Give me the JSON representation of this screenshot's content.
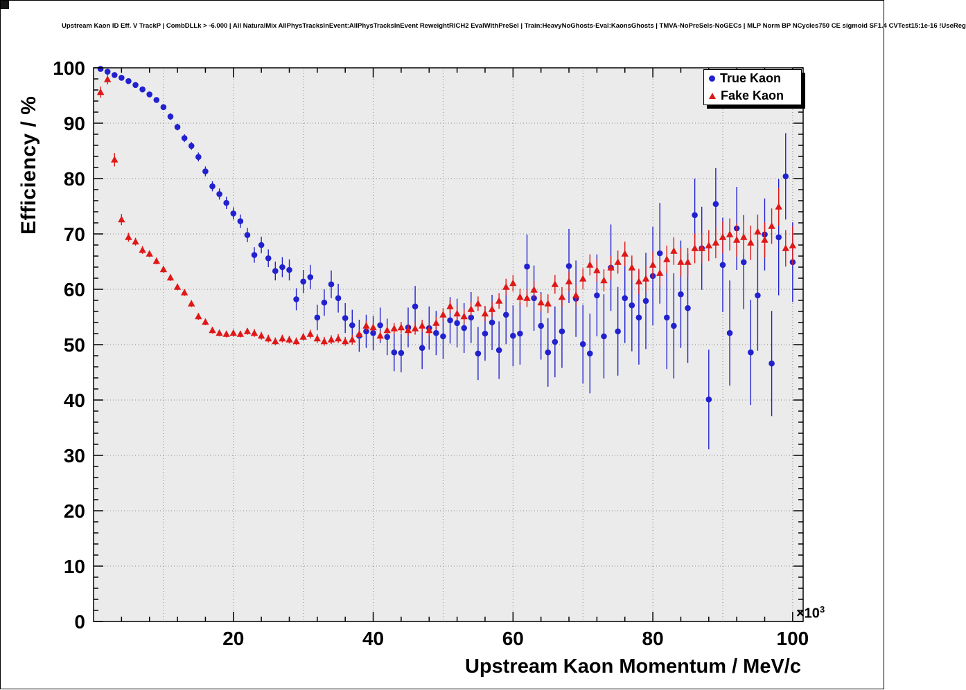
{
  "chart_data": {
    "type": "scatter",
    "title": "Upstream Kaon ID Eff. V TrackP | CombDLLk > -6.000 | All NaturalMix AllPhysTracksInEvent:AllPhysTracksInEvent ReweightRICH2 EvalWithPreSel | Train:HeavyNoGhosts-Eval:KaonsGhosts | TMVA-NoPreSels-NoGECs | MLP Norm BP NCycles750 CE sigmoid SF1.4 CVTest15:1e-16 !UseReg",
    "xlabel": "Upstream Kaon Momentum / MeV/c",
    "ylabel": "Efficiency / %",
    "x_exponent": {
      "base": "×10",
      "exp": "3"
    },
    "x_units_scale": "1e3 MeV/c",
    "xlim": [
      0,
      101.5
    ],
    "ylim": [
      0,
      100
    ],
    "x_ticks": [
      20,
      40,
      60,
      80,
      100
    ],
    "y_ticks": [
      0,
      10,
      20,
      30,
      40,
      50,
      60,
      70,
      80,
      90,
      100
    ],
    "grid": true,
    "legend_position": "top-right",
    "colors": {
      "frame_bg": "#ebebeb",
      "grid": "#8a8a8a",
      "axis": "#000000"
    },
    "x": [
      1,
      2,
      3,
      4,
      5,
      6,
      7,
      8,
      9,
      10,
      11,
      12,
      13,
      14,
      15,
      16,
      17,
      18,
      19,
      20,
      21,
      22,
      23,
      24,
      25,
      26,
      27,
      28,
      29,
      30,
      31,
      32,
      33,
      34,
      35,
      36,
      37,
      38,
      39,
      40,
      41,
      42,
      43,
      44,
      45,
      46,
      47,
      48,
      49,
      50,
      51,
      52,
      53,
      54,
      55,
      56,
      57,
      58,
      59,
      60,
      61,
      62,
      63,
      64,
      65,
      66,
      67,
      68,
      69,
      70,
      71,
      72,
      73,
      74,
      75,
      76,
      77,
      78,
      79,
      80,
      81,
      82,
      83,
      84,
      85,
      86,
      87,
      88,
      89,
      90,
      91,
      92,
      93,
      94,
      95,
      96,
      97,
      98,
      99,
      100
    ],
    "series": [
      {
        "name": "True Kaon",
        "marker": "circle",
        "color": "#2121cf",
        "values": [
          99.8,
          99.3,
          98.7,
          98.2,
          97.6,
          96.9,
          96.1,
          95.2,
          94.2,
          92.9,
          91.2,
          89.3,
          87.3,
          85.9,
          83.9,
          81.3,
          78.6,
          77.2,
          75.6,
          73.7,
          72.3,
          69.8,
          66.2,
          68.0,
          65.6,
          63.3,
          64.0,
          63.5,
          58.2,
          61.4,
          62.2,
          54.9,
          57.6,
          60.9,
          58.4,
          54.8,
          53.5,
          51.6,
          52.4,
          52.1,
          53.5,
          51.4,
          48.6,
          48.5,
          53.1,
          56.9,
          49.4,
          53.0,
          52.1,
          51.5,
          54.4,
          53.9,
          53.0,
          54.9,
          48.4,
          52.0,
          54.0,
          49.0,
          55.4,
          51.6,
          52.0,
          64.1,
          58.4,
          53.4,
          48.6,
          50.5,
          52.4,
          64.2,
          58.3,
          50.1,
          48.4,
          58.9,
          51.5,
          63.9,
          52.4,
          58.4,
          57.1,
          54.9,
          57.9,
          62.4,
          66.5,
          54.9,
          53.4,
          59.1,
          56.6,
          73.4,
          67.4,
          40.1,
          75.4,
          64.4,
          52.1,
          71.0,
          64.9,
          48.6,
          58.9,
          69.9,
          46.6,
          69.4,
          80.4,
          64.9
        ],
        "errors": [
          0.2,
          0.2,
          0.3,
          0.3,
          0.3,
          0.4,
          0.4,
          0.4,
          0.5,
          0.5,
          0.6,
          0.6,
          0.7,
          0.7,
          0.8,
          0.9,
          0.9,
          1.0,
          1.1,
          1.1,
          1.2,
          1.3,
          1.4,
          1.5,
          1.6,
          1.7,
          1.8,
          1.9,
          2.0,
          2.1,
          2.2,
          2.3,
          2.4,
          2.5,
          2.6,
          2.7,
          2.8,
          2.9,
          3.0,
          3.1,
          3.2,
          3.3,
          3.4,
          3.5,
          3.6,
          3.7,
          3.8,
          3.9,
          4.0,
          4.1,
          4.2,
          4.4,
          4.5,
          4.6,
          4.8,
          4.9,
          5.0,
          5.2,
          5.3,
          5.5,
          5.6,
          5.8,
          5.9,
          6.1,
          6.2,
          6.4,
          6.6,
          6.7,
          6.9,
          7.1,
          7.2,
          7.4,
          7.6,
          7.8,
          8.0,
          8.1,
          8.3,
          8.5,
          8.7,
          8.9,
          9.1,
          9.3,
          9.5,
          9.7,
          9.9,
          6.6,
          7.5,
          9.0,
          6.5,
          8.5,
          9.5,
          7.5,
          8.5,
          9.5,
          10.0,
          6.5,
          9.5,
          10.5,
          7.8,
          7.2
        ]
      },
      {
        "name": "Fake Kaon",
        "marker": "triangle",
        "color": "#e01717",
        "values": [
          95.6,
          97.9,
          83.4,
          72.6,
          69.4,
          68.6,
          67.1,
          66.4,
          65.1,
          63.6,
          62.1,
          60.4,
          59.4,
          57.4,
          55.1,
          54.1,
          52.6,
          52.1,
          51.9,
          52.1,
          51.9,
          52.4,
          52.1,
          51.6,
          51.1,
          50.6,
          51.1,
          50.9,
          50.6,
          51.4,
          51.9,
          51.1,
          50.6,
          50.9,
          51.1,
          50.6,
          50.9,
          51.9,
          53.4,
          53.1,
          51.6,
          52.6,
          52.9,
          53.1,
          52.6,
          52.9,
          53.4,
          52.6,
          53.9,
          55.4,
          56.9,
          55.6,
          55.1,
          56.4,
          57.4,
          55.6,
          56.4,
          57.9,
          60.4,
          61.1,
          58.6,
          58.4,
          59.9,
          57.6,
          57.4,
          60.9,
          58.6,
          61.4,
          58.9,
          61.9,
          64.4,
          63.4,
          61.6,
          63.9,
          64.9,
          66.4,
          63.9,
          61.4,
          61.9,
          64.4,
          62.9,
          65.4,
          66.9,
          64.9,
          64.9,
          67.4,
          67.4,
          67.9,
          68.4,
          69.4,
          69.9,
          68.9,
          69.4,
          68.4,
          70.4,
          68.9,
          71.4,
          74.9,
          67.4,
          67.9
        ],
        "errors": [
          1.0,
          0.9,
          1.2,
          1.0,
          0.8,
          0.7,
          0.7,
          0.6,
          0.6,
          0.6,
          0.6,
          0.6,
          0.6,
          0.6,
          0.6,
          0.6,
          0.6,
          0.6,
          0.6,
          0.6,
          0.6,
          0.6,
          0.7,
          0.7,
          0.7,
          0.7,
          0.7,
          0.7,
          0.7,
          0.7,
          0.8,
          0.8,
          0.8,
          0.8,
          0.8,
          0.8,
          0.9,
          0.9,
          0.9,
          0.9,
          0.9,
          1.0,
          1.0,
          1.0,
          1.0,
          1.1,
          1.1,
          1.1,
          1.1,
          1.2,
          1.2,
          1.2,
          1.3,
          1.3,
          1.3,
          1.4,
          1.4,
          1.4,
          1.5,
          1.5,
          1.5,
          1.6,
          1.6,
          1.6,
          1.7,
          1.7,
          1.8,
          1.8,
          1.8,
          1.9,
          1.9,
          2.0,
          2.0,
          2.1,
          2.1,
          2.2,
          2.2,
          2.3,
          2.3,
          2.4,
          2.4,
          2.5,
          2.5,
          2.6,
          2.6,
          2.7,
          2.7,
          2.8,
          2.8,
          2.9,
          2.9,
          3.0,
          3.0,
          3.1,
          3.1,
          3.2,
          3.2,
          3.4,
          3.3,
          3.5
        ]
      }
    ]
  }
}
